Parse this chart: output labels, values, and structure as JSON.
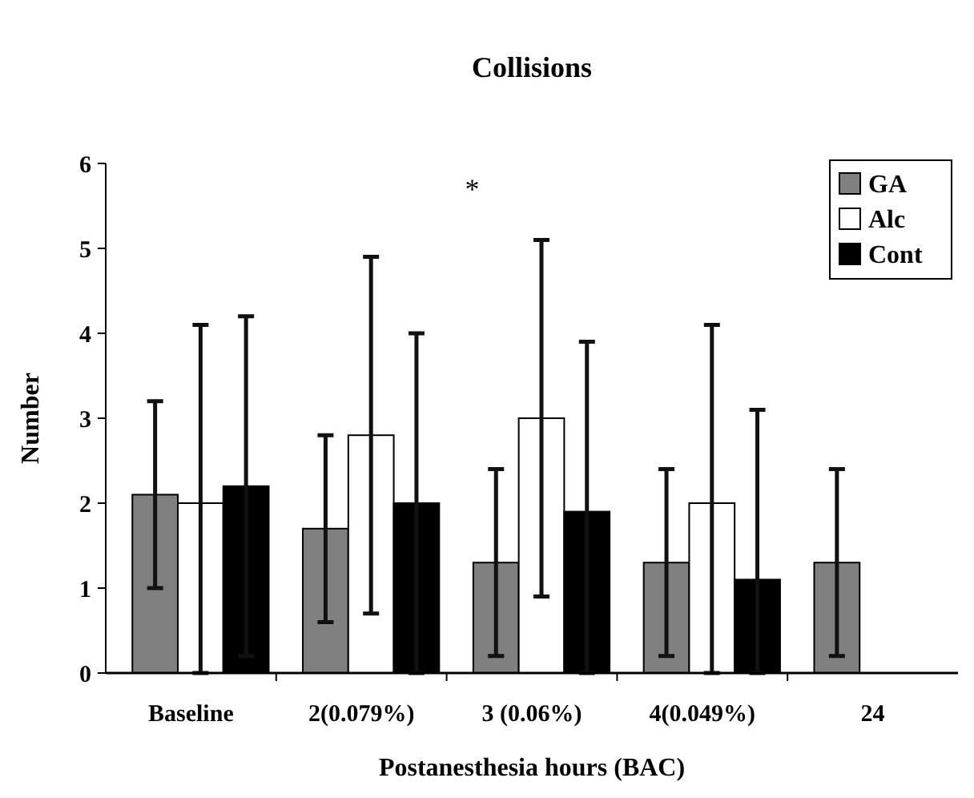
{
  "chart_data": {
    "type": "bar",
    "title": "Collisions",
    "xlabel": "Postanesthesia hours (BAC)",
    "ylabel": "Number",
    "categories": [
      "Baseline",
      "2(0.079%)",
      "3 (0.06%)",
      "4(0.049%)",
      "24"
    ],
    "series": [
      {
        "name": "GA",
        "color": "#808080",
        "values": [
          2.1,
          1.7,
          1.3,
          1.3,
          1.3
        ],
        "errors": [
          [
            1.0,
            3.2
          ],
          [
            0.6,
            2.8
          ],
          [
            0.2,
            2.4
          ],
          [
            0.2,
            2.4
          ],
          [
            0.2,
            2.4
          ]
        ]
      },
      {
        "name": "Alc",
        "color": "#ffffff",
        "values": [
          2.0,
          2.8,
          3.0,
          2.0,
          null
        ],
        "errors": [
          [
            0,
            4.1
          ],
          [
            0.7,
            4.9
          ],
          [
            0.9,
            5.1
          ],
          [
            0,
            4.1
          ],
          null
        ]
      },
      {
        "name": "Cont",
        "color": "#000000",
        "values": [
          2.2,
          2.0,
          1.9,
          1.1,
          null
        ],
        "errors": [
          [
            0.2,
            4.2
          ],
          [
            0,
            4.0
          ],
          [
            0,
            3.9
          ],
          [
            0,
            3.1
          ],
          null
        ]
      }
    ],
    "ylim": [
      0,
      6
    ],
    "yticks": [
      0,
      1,
      2,
      3,
      4,
      5,
      6
    ],
    "grid": false,
    "legend": "top right",
    "annotations": [
      "*"
    ]
  }
}
